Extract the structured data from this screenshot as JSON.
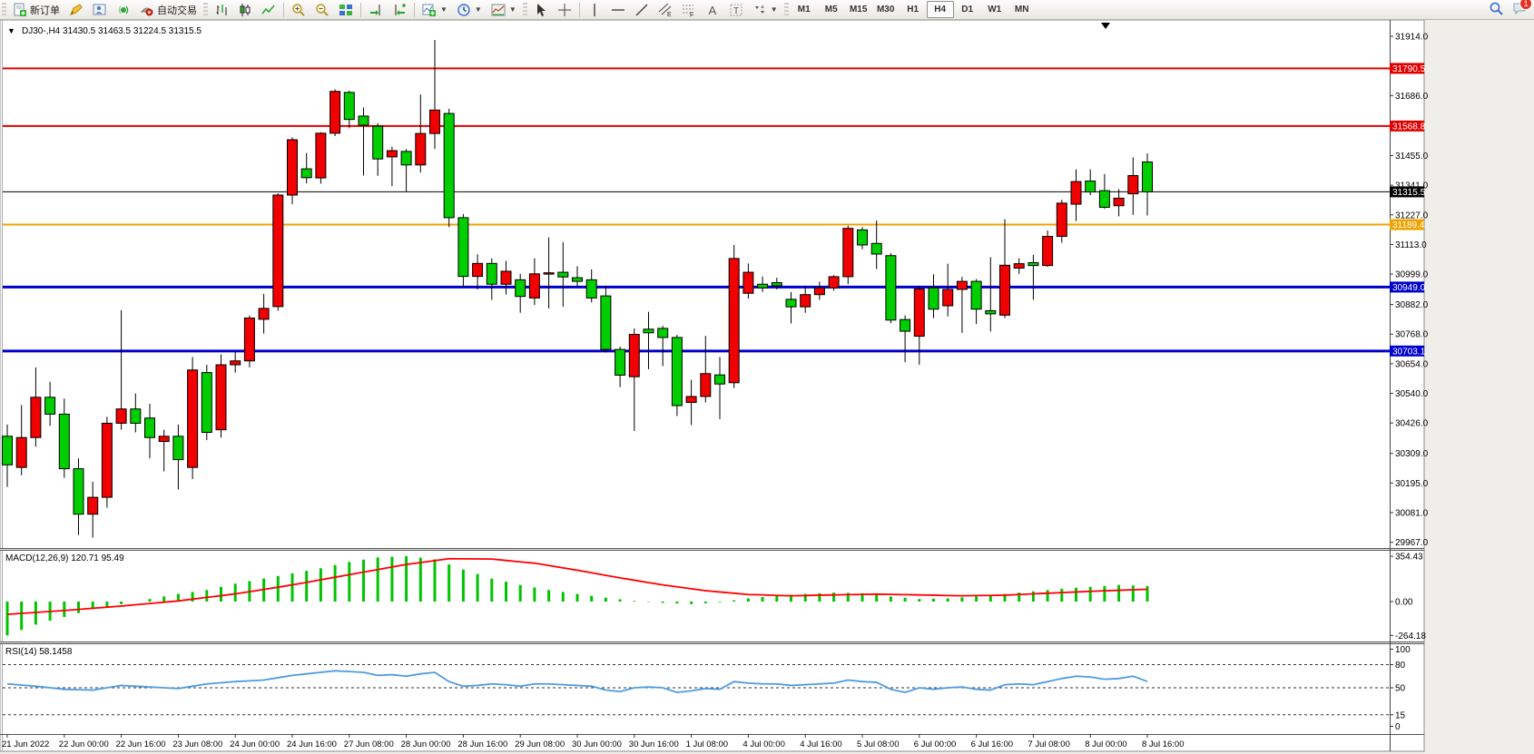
{
  "toolbar": {
    "new_order_label": "新订单",
    "auto_trading_label": "自动交易",
    "icon_names": [
      "new-order-icon",
      "styler-icon",
      "profile-icon",
      "sound-icon",
      "auto-trading-icon",
      "bar-chart-icon",
      "candlestick-chart-icon",
      "line-chart-icon",
      "zoom-in-icon",
      "zoom-out-icon",
      "tile-windows-icon",
      "auto-scroll-icon",
      "chart-shift-icon",
      "indicators-icon",
      "periods-icon",
      "templates-icon",
      "cursor-icon",
      "crosshair-icon",
      "vertical-line-icon",
      "horizontal-line-icon",
      "trendline-icon",
      "channel-icon",
      "fibonacci-icon",
      "text-icon",
      "text-label-icon",
      "arrows-icon",
      "search-icon",
      "chat-icon"
    ],
    "periods": [
      {
        "label": "M1",
        "active": false
      },
      {
        "label": "M5",
        "active": false
      },
      {
        "label": "M15",
        "active": false
      },
      {
        "label": "M30",
        "active": false
      },
      {
        "label": "H1",
        "active": false
      },
      {
        "label": "H4",
        "active": true
      },
      {
        "label": "D1",
        "active": false
      },
      {
        "label": "W1",
        "active": false
      },
      {
        "label": "MN",
        "active": false
      }
    ],
    "chat_badge": "1"
  },
  "chart": {
    "title_text": "DJ30-,H4  31430.5 31463.5 31224.5 31315.5",
    "symbol_period": "DJ30-,H4",
    "last_ohlc": {
      "open": "31430.5",
      "high": "31463.5",
      "low": "31224.5",
      "close": "31315.5"
    },
    "current_price": "31315.5",
    "colors": {
      "bull": "#f00000",
      "bear": "#00ce00",
      "outline": "#000000",
      "macd_hist": "#00c400",
      "macd_signal": "#ff0000",
      "rsi_line": "#4e9be0",
      "level_red": "#e00000",
      "level_orange": "#efa300",
      "level_blue": "#0000cd",
      "badge_black": "#000000"
    },
    "levels": [
      {
        "price": 31790.5,
        "label": "31790.5",
        "color": "#e00000",
        "width": 2
      },
      {
        "price": 31568.8,
        "label": "31568.8",
        "color": "#e00000",
        "width": 2
      },
      {
        "price": 31315.5,
        "label": "31315.5",
        "color": "#000000",
        "width": 1
      },
      {
        "price": 31189.4,
        "label": "31189.4",
        "color": "#efa300",
        "width": 2
      },
      {
        "price": 30949.0,
        "label": "30949.0",
        "color": "#0000cd",
        "width": 3
      },
      {
        "price": 30703.1,
        "label": "30703.1",
        "color": "#0000cd",
        "width": 3
      }
    ],
    "axis_ticks": [
      "31914.0",
      "31686.0",
      "31455.0",
      "31341.0",
      "31227.0",
      "31113.0",
      "30999.0",
      "30882.0",
      "30768.0",
      "30654.0",
      "30540.0",
      "30426.0",
      "30309.0",
      "30195.0",
      "30081.0",
      "29967.0"
    ],
    "time_labels": [
      "21 Jun 2022",
      "22 Jun 00:00",
      "22 Jun 16:00",
      "23 Jun 08:00",
      "24 Jun 00:00",
      "24 Jun 16:00",
      "27 Jun 08:00",
      "28 Jun 00:00",
      "28 Jun 16:00",
      "29 Jun 08:00",
      "30 Jun 00:00",
      "30 Jun 16:00",
      "1 Jul 08:00",
      "4 Jul 00:00",
      "4 Jul 16:00",
      "5 Jul 08:00",
      "6 Jul 00:00",
      "6 Jul 16:00",
      "7 Jul 08:00",
      "8 Jul 00:00",
      "8 Jul 16:00"
    ],
    "chart_data": {
      "type": "candlestick",
      "candles": [
        [
          30375,
          30420,
          30180,
          30265
        ],
        [
          30255,
          30495,
          30225,
          30370
        ],
        [
          30370,
          30640,
          30335,
          30525
        ],
        [
          30525,
          30585,
          30415,
          30460
        ],
        [
          30460,
          30520,
          30215,
          30250
        ],
        [
          30250,
          30290,
          29995,
          30075
        ],
        [
          30075,
          30200,
          29985,
          30140
        ],
        [
          30140,
          30450,
          30100,
          30425
        ],
        [
          30425,
          30860,
          30400,
          30480
        ],
        [
          30480,
          30540,
          30390,
          30425
        ],
        [
          30445,
          30500,
          30290,
          30370
        ],
        [
          30355,
          30400,
          30240,
          30375
        ],
        [
          30375,
          30420,
          30170,
          30285
        ],
        [
          30255,
          30680,
          30210,
          30630
        ],
        [
          30620,
          30650,
          30360,
          30390
        ],
        [
          30400,
          30690,
          30370,
          30650
        ],
        [
          30650,
          30700,
          30620,
          30665
        ],
        [
          30665,
          30840,
          30640,
          30830
        ],
        [
          30825,
          30923,
          30770,
          30867
        ],
        [
          30874,
          31310,
          30858,
          31303
        ],
        [
          31303,
          31525,
          31268,
          31516
        ],
        [
          31404,
          31465,
          31348,
          31370
        ],
        [
          31369,
          31545,
          31347,
          31541
        ],
        [
          31541,
          31710,
          31530,
          31702
        ],
        [
          31698,
          31705,
          31560,
          31594
        ],
        [
          31607,
          31640,
          31378,
          31572
        ],
        [
          31568,
          31580,
          31377,
          31442
        ],
        [
          31450,
          31489,
          31338,
          31474
        ],
        [
          31471,
          31480,
          31315,
          31419
        ],
        [
          31419,
          31690,
          31390,
          31540
        ],
        [
          31540,
          31900,
          31480,
          31630
        ],
        [
          31617,
          31635,
          31180,
          31216
        ],
        [
          31216,
          31230,
          30950,
          30990
        ],
        [
          30990,
          31075,
          30940,
          31040
        ],
        [
          31040,
          31060,
          30900,
          30960
        ],
        [
          30960,
          31050,
          30920,
          31010
        ],
        [
          30977,
          31000,
          30850,
          30913
        ],
        [
          30907,
          31060,
          30880,
          31000
        ],
        [
          31000,
          31140,
          30867,
          31004
        ],
        [
          31006,
          31122,
          30873,
          30988
        ],
        [
          30985,
          31029,
          30954,
          30971
        ],
        [
          30977,
          31017,
          30890,
          30907
        ],
        [
          30915,
          30954,
          30697,
          30709
        ],
        [
          30709,
          30720,
          30564,
          30610
        ],
        [
          30604,
          30790,
          30395,
          30767
        ],
        [
          30787,
          30854,
          30633,
          30773
        ],
        [
          30790,
          30800,
          30645,
          30755
        ],
        [
          30755,
          30765,
          30453,
          30493
        ],
        [
          30505,
          30592,
          30418,
          30528
        ],
        [
          30528,
          30761,
          30505,
          30616
        ],
        [
          30611,
          30680,
          30441,
          30576
        ],
        [
          30581,
          31111,
          30560,
          31059
        ],
        [
          30925,
          31040,
          30905,
          31006
        ],
        [
          30960,
          30990,
          30930,
          30946
        ],
        [
          30966,
          30985,
          30940,
          30954
        ],
        [
          30902,
          30930,
          30809,
          30873
        ],
        [
          30873,
          30950,
          30850,
          30920
        ],
        [
          30920,
          30970,
          30900,
          30946
        ],
        [
          30946,
          30995,
          30935,
          30989
        ],
        [
          30989,
          31185,
          30960,
          31175
        ],
        [
          31169,
          31180,
          31095,
          31111
        ],
        [
          31117,
          31205,
          31018,
          31076
        ],
        [
          31070,
          31080,
          30810,
          30822
        ],
        [
          30824,
          30840,
          30660,
          30779
        ],
        [
          30760,
          30950,
          30650,
          30942
        ],
        [
          30946,
          30998,
          30830,
          30864
        ],
        [
          30877,
          31039,
          30836,
          30940
        ],
        [
          30940,
          30988,
          30773,
          30971
        ],
        [
          30971,
          30980,
          30807,
          30864
        ],
        [
          30858,
          31064,
          30778,
          30846
        ],
        [
          30841,
          31210,
          30830,
          31033
        ],
        [
          31022,
          31060,
          31000,
          31039
        ],
        [
          31043,
          31073,
          30900,
          31032
        ],
        [
          31032,
          31167,
          31026,
          31144
        ],
        [
          31144,
          31285,
          31120,
          31272
        ],
        [
          31268,
          31402,
          31203,
          31355
        ],
        [
          31357,
          31402,
          31303,
          31315
        ],
        [
          31320,
          31384,
          31250,
          31256
        ],
        [
          31262,
          31326,
          31221,
          31291
        ],
        [
          31308,
          31448,
          31227,
          31378
        ],
        [
          31430.5,
          31463.5,
          31224.5,
          31315.5
        ]
      ]
    },
    "macd": {
      "label": "MACD(12,26,9) 120.71 95.49",
      "scale": [
        "354.43",
        "0.00",
        "-264.18"
      ],
      "hist": [
        -264,
        -222,
        -180,
        -150,
        -120,
        -90,
        -60,
        -40,
        -20,
        0,
        20,
        40,
        60,
        75,
        90,
        115,
        140,
        160,
        180,
        200,
        220,
        240,
        260,
        285,
        310,
        328,
        345,
        350,
        355,
        343,
        330,
        290,
        250,
        215,
        180,
        155,
        130,
        110,
        90,
        75,
        60,
        45,
        30,
        18,
        5,
        -3,
        -10,
        -15,
        -20,
        -13,
        -5,
        10,
        25,
        35,
        45,
        53,
        60,
        65,
        70,
        68,
        65,
        53,
        40,
        30,
        20,
        22,
        25,
        33,
        40,
        50,
        60,
        70,
        80,
        90,
        100,
        108,
        115,
        122,
        130,
        126,
        120.71
      ],
      "signal": [
        -100,
        -92,
        -85,
        -77,
        -70,
        -61,
        -52,
        -44,
        -35,
        -25,
        -15,
        -5,
        5,
        19,
        33,
        46,
        60,
        77,
        95,
        112,
        130,
        150,
        170,
        190,
        210,
        230,
        250,
        270,
        290,
        305,
        320,
        335,
        334,
        333,
        332,
        321,
        310,
        300,
        282,
        263,
        245,
        225,
        205,
        185,
        167,
        148,
        130,
        115,
        100,
        85,
        75,
        65,
        55,
        52,
        48,
        45,
        47,
        50,
        52,
        54,
        56,
        58,
        56,
        54,
        52,
        50,
        47,
        45,
        47,
        48,
        50,
        55,
        60,
        65,
        70,
        75,
        80,
        84,
        88,
        92,
        95.49
      ]
    },
    "rsi": {
      "label": "RSI(14) 58.1458",
      "levels": [
        80,
        50,
        15
      ],
      "scale": [
        "100",
        "80",
        "50",
        "15",
        "0"
      ],
      "values": [
        55,
        53.5,
        52,
        50,
        48,
        47.5,
        47,
        50,
        53,
        52,
        51,
        50,
        49,
        52,
        55,
        56.5,
        58,
        59,
        60,
        63,
        66,
        68,
        70,
        72,
        71,
        70,
        66,
        67,
        65,
        68,
        70,
        58,
        52,
        53,
        55,
        54,
        52,
        55,
        55,
        54,
        53,
        52,
        47,
        45,
        50,
        51,
        50,
        44,
        46,
        49,
        48,
        58,
        56,
        55,
        55,
        53,
        54,
        55,
        56,
        60,
        58,
        57,
        48,
        44,
        50,
        48,
        50,
        51,
        48,
        47,
        54,
        55,
        54,
        58,
        62,
        65,
        64,
        61,
        62,
        65,
        58.15
      ]
    }
  }
}
